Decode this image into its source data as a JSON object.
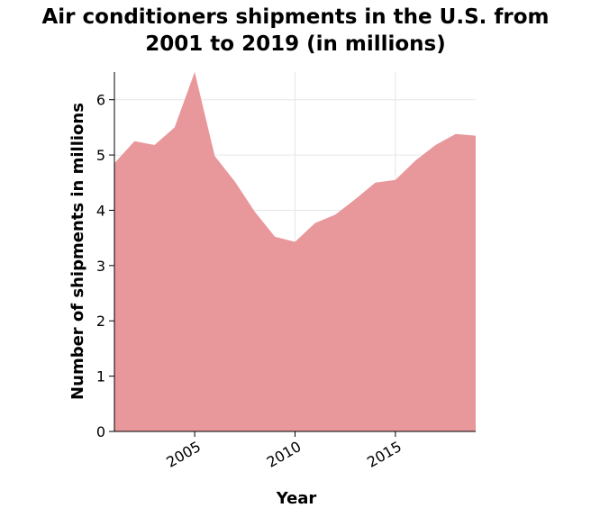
{
  "chart_data": {
    "type": "area",
    "title_lines": [
      "Air conditioners shipments in the U.S. from",
      "2001 to 2019 (in millions)"
    ],
    "xlabel": "Year",
    "ylabel": "Number of shipments in millions",
    "xlim": [
      2001,
      2019
    ],
    "ylim": [
      0,
      6.5
    ],
    "x_ticks": [
      2005,
      2010,
      2015
    ],
    "y_ticks": [
      0,
      1,
      2,
      3,
      4,
      5,
      6
    ],
    "grid": true,
    "colors": {
      "fill": "#e8979b",
      "grid": "#e6e6e6",
      "axis": "#000000"
    },
    "series": [
      {
        "x": [
          2001,
          2002,
          2003,
          2004,
          2005,
          2006,
          2007,
          2008,
          2009,
          2010,
          2011,
          2012,
          2013,
          2014,
          2015,
          2016,
          2017,
          2018,
          2019
        ],
        "values": [
          4.85,
          5.25,
          5.18,
          5.5,
          6.5,
          4.98,
          4.52,
          3.97,
          3.52,
          3.43,
          3.77,
          3.92,
          4.2,
          4.5,
          4.55,
          4.9,
          5.18,
          5.38,
          5.35
        ]
      }
    ]
  }
}
